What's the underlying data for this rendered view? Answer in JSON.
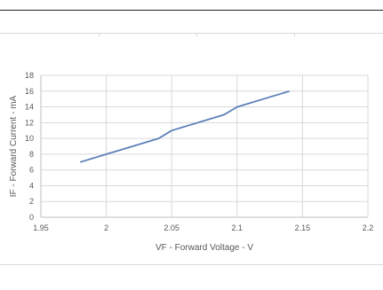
{
  "chart_data": {
    "type": "line",
    "title": "",
    "xlabel": "VF - Forward Voltage - V",
    "ylabel": "IF - Forward Current - mA",
    "xlim": [
      1.95,
      2.2
    ],
    "ylim": [
      0,
      18
    ],
    "x_ticks": [
      "1.95",
      "2",
      "2.05",
      "2.1",
      "2.15",
      "2.2"
    ],
    "y_ticks": [
      "0",
      "2",
      "4",
      "6",
      "8",
      "10",
      "12",
      "14",
      "16",
      "18"
    ],
    "grid": true,
    "legend": "none",
    "series": [
      {
        "color": "#5b7fb8",
        "x": [
          1.98,
          2.0,
          2.04,
          2.05,
          2.09,
          2.1,
          2.12,
          2.14
        ],
        "y": [
          7,
          8,
          10,
          11,
          13,
          14,
          15,
          16
        ]
      }
    ]
  }
}
